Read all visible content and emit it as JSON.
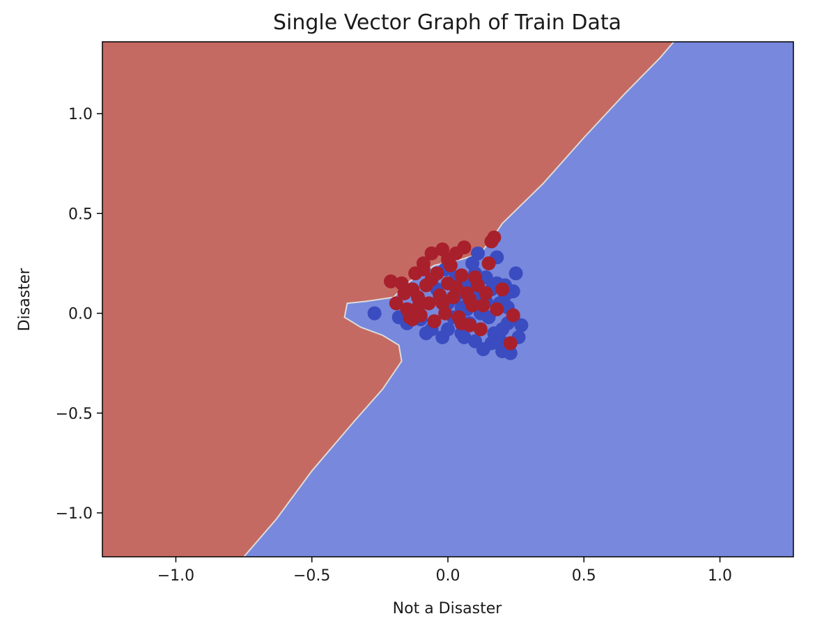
{
  "chart_data": {
    "type": "scatter",
    "title": "Single Vector Graph of Train Data",
    "xlabel": "Not a Disaster",
    "ylabel": "Disaster",
    "xlim": [
      -1.27,
      1.27
    ],
    "ylim": [
      -1.22,
      1.36
    ],
    "x_ticks": [
      -1.0,
      -0.5,
      0.0,
      0.5,
      1.0
    ],
    "x_tick_labels": [
      "−1.0",
      "−0.5",
      "0.0",
      "0.5",
      "1.0"
    ],
    "y_ticks": [
      -1.0,
      -0.5,
      0.0,
      0.5,
      1.0
    ],
    "y_tick_labels": [
      "−1.0",
      "−0.5",
      "0.0",
      "0.5",
      "1.0"
    ],
    "grid": false,
    "legend": "none",
    "colors": {
      "region_red": "#c56a62",
      "region_blue": "#7788dd",
      "boundary": "#dcdcdc",
      "point_red": "#a8202c",
      "point_blue": "#3b4cc0"
    },
    "decision_regions": {
      "red_region": [
        [
          -1.27,
          1.36
        ],
        [
          0.83,
          1.36
        ],
        [
          0.78,
          1.28
        ],
        [
          0.65,
          1.1
        ],
        [
          0.5,
          0.88
        ],
        [
          0.35,
          0.65
        ],
        [
          0.2,
          0.45
        ],
        [
          0.17,
          0.39
        ],
        [
          0.12,
          0.3
        ],
        [
          0.05,
          0.27
        ],
        [
          -0.05,
          0.24
        ],
        [
          -0.14,
          0.16
        ],
        [
          -0.2,
          0.08
        ],
        [
          -0.3,
          0.06
        ],
        [
          -0.37,
          0.05
        ],
        [
          -0.38,
          -0.02
        ],
        [
          -0.32,
          -0.07
        ],
        [
          -0.24,
          -0.11
        ],
        [
          -0.18,
          -0.16
        ],
        [
          -0.17,
          -0.24
        ],
        [
          -0.24,
          -0.38
        ],
        [
          -0.35,
          -0.55
        ],
        [
          -0.5,
          -0.79
        ],
        [
          -0.63,
          -1.03
        ],
        [
          -0.75,
          -1.22
        ],
        [
          -1.27,
          -1.22
        ]
      ]
    },
    "series": [
      {
        "color_key": "point_blue",
        "points": [
          [
            -0.27,
            0.0
          ],
          [
            -0.18,
            -0.02
          ],
          [
            -0.15,
            -0.05
          ],
          [
            -0.1,
            -0.03
          ],
          [
            -0.06,
            -0.08
          ],
          [
            -0.02,
            -0.12
          ],
          [
            -0.01,
            0.22
          ],
          [
            0.0,
            0.05
          ],
          [
            0.02,
            -0.02
          ],
          [
            0.04,
            0.1
          ],
          [
            0.05,
            -0.1
          ],
          [
            0.06,
            0.15
          ],
          [
            0.07,
            0.02
          ],
          [
            0.08,
            -0.05
          ],
          [
            0.09,
            0.25
          ],
          [
            0.1,
            -0.14
          ],
          [
            0.11,
            0.3
          ],
          [
            0.12,
            0.08
          ],
          [
            0.13,
            -0.18
          ],
          [
            0.14,
            0.18
          ],
          [
            0.15,
            -0.02
          ],
          [
            0.16,
            0.12
          ],
          [
            0.17,
            -0.1
          ],
          [
            0.18,
            0.28
          ],
          [
            0.19,
            0.05
          ],
          [
            0.2,
            -0.19
          ],
          [
            0.21,
            0.14
          ],
          [
            0.22,
            -0.05
          ],
          [
            0.23,
            -0.2
          ],
          [
            0.24,
            0.11
          ],
          [
            0.25,
            0.2
          ],
          [
            0.26,
            -0.12
          ],
          [
            0.27,
            -0.06
          ],
          [
            0.2,
            -0.08
          ],
          [
            0.22,
            0.03
          ],
          [
            0.16,
            -0.15
          ],
          [
            0.1,
            0.2
          ],
          [
            0.06,
            -0.12
          ],
          [
            0.0,
            -0.08
          ],
          [
            0.03,
            0.18
          ],
          [
            0.12,
            0.0
          ],
          [
            0.18,
            0.15
          ],
          [
            0.24,
            -0.02
          ],
          [
            0.14,
            0.06
          ],
          [
            0.08,
            0.12
          ],
          [
            0.19,
            -0.13
          ],
          [
            0.05,
            0.03
          ],
          [
            -0.04,
            0.12
          ],
          [
            -0.08,
            -0.1
          ],
          [
            0.21,
            0.09
          ]
        ]
      },
      {
        "color_key": "point_red",
        "points": [
          [
            -0.21,
            0.16
          ],
          [
            -0.19,
            0.05
          ],
          [
            -0.17,
            0.15
          ],
          [
            -0.15,
            0.02
          ],
          [
            -0.14,
            -0.02
          ],
          [
            -0.13,
            0.12
          ],
          [
            -0.12,
            0.2
          ],
          [
            -0.11,
            0.08
          ],
          [
            -0.1,
            -0.01
          ],
          [
            -0.09,
            0.25
          ],
          [
            -0.08,
            0.14
          ],
          [
            -0.07,
            0.05
          ],
          [
            -0.06,
            0.3
          ],
          [
            -0.05,
            -0.04
          ],
          [
            -0.04,
            0.2
          ],
          [
            -0.03,
            0.09
          ],
          [
            -0.02,
            0.32
          ],
          [
            -0.01,
            0.0
          ],
          [
            0.0,
            0.15
          ],
          [
            0.01,
            0.24
          ],
          [
            0.02,
            0.08
          ],
          [
            0.03,
            0.3
          ],
          [
            0.04,
            -0.02
          ],
          [
            0.05,
            0.19
          ],
          [
            0.06,
            0.33
          ],
          [
            0.07,
            0.1
          ],
          [
            0.08,
            -0.06
          ],
          [
            0.09,
            0.04
          ],
          [
            0.1,
            0.18
          ],
          [
            0.12,
            -0.08
          ],
          [
            0.14,
            0.1
          ],
          [
            0.15,
            0.25
          ],
          [
            0.16,
            0.36
          ],
          [
            0.17,
            0.38
          ],
          [
            0.18,
            0.02
          ],
          [
            0.2,
            0.12
          ],
          [
            0.23,
            -0.15
          ],
          [
            0.24,
            -0.01
          ],
          [
            -0.16,
            0.1
          ],
          [
            -0.11,
            0.03
          ],
          [
            -0.06,
            0.17
          ],
          [
            -0.02,
            0.05
          ],
          [
            0.03,
            0.13
          ],
          [
            0.08,
            0.07
          ],
          [
            -0.13,
            -0.03
          ],
          [
            0.0,
            0.27
          ],
          [
            -0.09,
            0.22
          ],
          [
            0.11,
            0.14
          ],
          [
            0.05,
            -0.05
          ],
          [
            0.13,
            0.04
          ]
        ]
      }
    ]
  }
}
